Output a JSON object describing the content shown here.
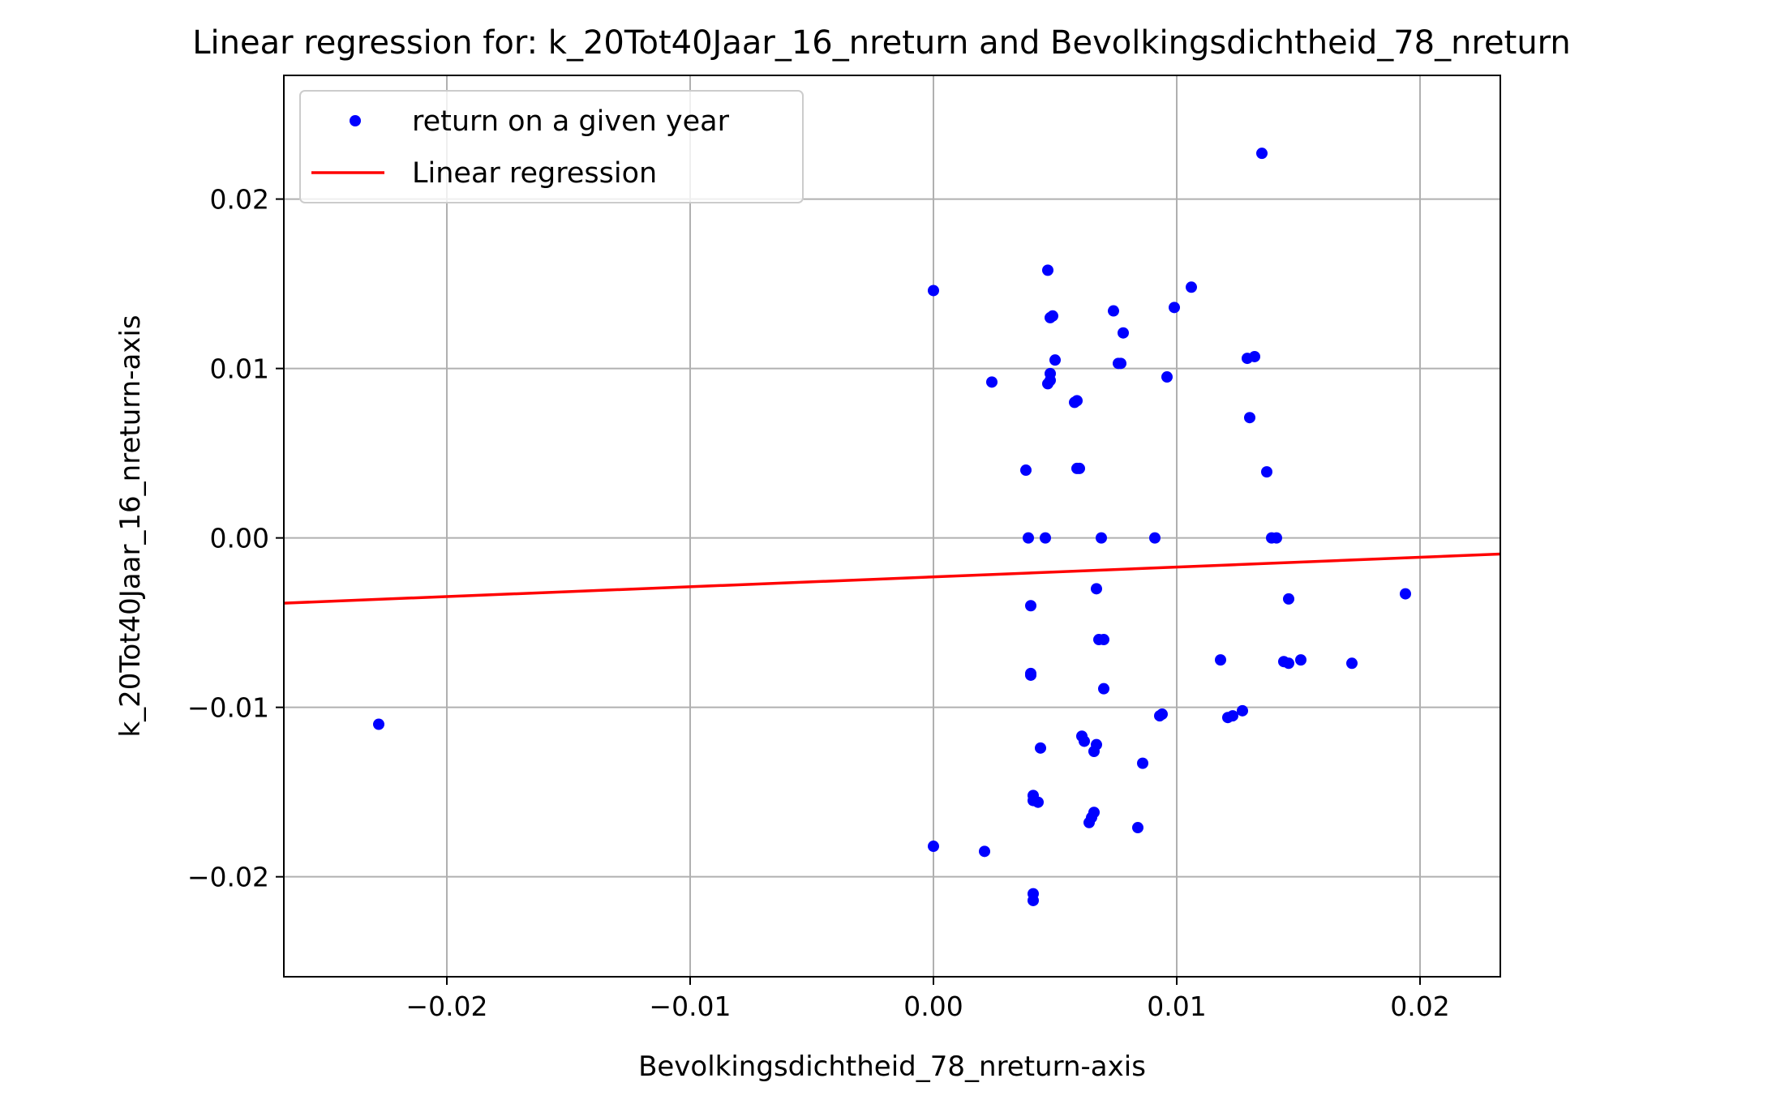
{
  "chart_data": {
    "type": "scatter",
    "title": "Linear regression for: k_20Tot40Jaar_16_nreturn and Bevolkingsdichtheid_78_nreturn",
    "xlabel": "Bevolkingsdichtheid_78_nreturn-axis",
    "ylabel": "k_20Tot40Jaar_16_nreturn-axis",
    "xlim": [
      -0.0267,
      0.0233
    ],
    "ylim": [
      -0.0259,
      0.0273
    ],
    "xticks": [
      {
        "value": -0.02,
        "label": "−0.02"
      },
      {
        "value": -0.01,
        "label": "−0.01"
      },
      {
        "value": 0.0,
        "label": "0.00"
      },
      {
        "value": 0.01,
        "label": "0.01"
      },
      {
        "value": 0.02,
        "label": "0.02"
      }
    ],
    "yticks": [
      {
        "value": -0.02,
        "label": "−0.02"
      },
      {
        "value": -0.01,
        "label": "−0.01"
      },
      {
        "value": 0.0,
        "label": "0.00"
      },
      {
        "value": 0.01,
        "label": "0.01"
      },
      {
        "value": 0.02,
        "label": "0.02"
      }
    ],
    "grid": true,
    "legend_position": "top-left",
    "series": [
      {
        "name": "return on a given year",
        "kind": "scatter",
        "color": "#0000ff",
        "points": [
          [
            -0.0228,
            -0.011
          ],
          [
            0.0,
            0.0146
          ],
          [
            0.0,
            -0.0182
          ],
          [
            0.0021,
            -0.0185
          ],
          [
            0.0024,
            0.0092
          ],
          [
            0.0038,
            0.004
          ],
          [
            0.0039,
            0.0
          ],
          [
            0.004,
            -0.004
          ],
          [
            0.004,
            -0.008
          ],
          [
            0.004,
            -0.0081
          ],
          [
            0.0041,
            -0.0152
          ],
          [
            0.0041,
            -0.0155
          ],
          [
            0.0041,
            -0.021
          ],
          [
            0.0041,
            -0.0214
          ],
          [
            0.0043,
            -0.0156
          ],
          [
            0.0044,
            -0.0124
          ],
          [
            0.0046,
            0.0
          ],
          [
            0.0047,
            0.0091
          ],
          [
            0.0047,
            0.0158
          ],
          [
            0.0048,
            0.0093
          ],
          [
            0.0048,
            0.0097
          ],
          [
            0.0048,
            0.013
          ],
          [
            0.0049,
            0.0131
          ],
          [
            0.005,
            0.0105
          ],
          [
            0.0058,
            0.008
          ],
          [
            0.0059,
            0.0081
          ],
          [
            0.0059,
            0.0041
          ],
          [
            0.006,
            0.0041
          ],
          [
            0.0061,
            -0.0117
          ],
          [
            0.0062,
            -0.012
          ],
          [
            0.0064,
            -0.0168
          ],
          [
            0.0065,
            -0.0165
          ],
          [
            0.0066,
            -0.0126
          ],
          [
            0.0066,
            -0.0162
          ],
          [
            0.0067,
            -0.0122
          ],
          [
            0.0067,
            -0.003
          ],
          [
            0.0068,
            -0.006
          ],
          [
            0.0069,
            0.0
          ],
          [
            0.007,
            -0.006
          ],
          [
            0.007,
            -0.0089
          ],
          [
            0.0074,
            0.0134
          ],
          [
            0.0076,
            0.0103
          ],
          [
            0.0077,
            0.0103
          ],
          [
            0.0078,
            0.0121
          ],
          [
            0.0084,
            -0.0171
          ],
          [
            0.0086,
            -0.0133
          ],
          [
            0.0091,
            0.0
          ],
          [
            0.0093,
            -0.0105
          ],
          [
            0.0094,
            -0.0104
          ],
          [
            0.0096,
            0.0095
          ],
          [
            0.0099,
            0.0136
          ],
          [
            0.0106,
            0.0148
          ],
          [
            0.0118,
            -0.0072
          ],
          [
            0.0121,
            -0.0106
          ],
          [
            0.0123,
            -0.0105
          ],
          [
            0.0127,
            -0.0102
          ],
          [
            0.0129,
            0.0106
          ],
          [
            0.013,
            0.0071
          ],
          [
            0.0132,
            0.0107
          ],
          [
            0.0135,
            0.0227
          ],
          [
            0.0137,
            0.0039
          ],
          [
            0.0139,
            0.0
          ],
          [
            0.0141,
            0.0
          ],
          [
            0.0144,
            -0.0073
          ],
          [
            0.0146,
            -0.0074
          ],
          [
            0.0146,
            -0.0036
          ],
          [
            0.0151,
            -0.0072
          ],
          [
            0.0172,
            -0.0074
          ],
          [
            0.0194,
            -0.0033
          ]
        ]
      },
      {
        "name": "Linear regression",
        "kind": "line",
        "color": "#ff0000",
        "points": [
          [
            -0.0267,
            -0.00385
          ],
          [
            0.0233,
            -0.00095
          ]
        ]
      }
    ]
  }
}
